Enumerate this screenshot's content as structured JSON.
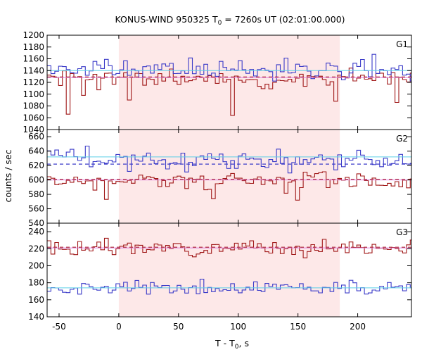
{
  "chart_data": {
    "type": "line",
    "title_main": "KONUS-WIND 950325 T",
    "title_sub": "0",
    "title_rest": " = 7260s UT (02:01:00.000)",
    "ylabel": "counts / sec",
    "xlabel_main": "T - T",
    "xlabel_sub": "0",
    "xlabel_rest": ", s",
    "xlim": [
      -60,
      245
    ],
    "x_ticks": [
      -50,
      0,
      50,
      100,
      150,
      200
    ],
    "highlight_interval": [
      0,
      185
    ],
    "highlight_color": "#fde8e8",
    "series_colors": {
      "high": "#3a3ac8",
      "low": "#a01818",
      "bg_high": "#5ccfe6",
      "bg_low": "#e080e0"
    },
    "panels": [
      {
        "name": "G1",
        "ylim": [
          1040,
          1200
        ],
        "y_ticks": [
          1040,
          1060,
          1080,
          1100,
          1120,
          1140,
          1160,
          1180,
          1200
        ],
        "blue_level": 1140,
        "red_level": 1128,
        "blue_base": 1142,
        "blue_amp": 16,
        "blue_seed": 11,
        "red_base": 1126,
        "red_amp": 14,
        "red_seed": 23,
        "red_dips": [
          [
            -42,
            1066
          ],
          [
            95,
            1064
          ],
          [
            -28,
            1098
          ],
          [
            10,
            1090
          ],
          [
            180,
            1088
          ],
          [
            232,
            1086
          ]
        ]
      },
      {
        "name": "G2",
        "ylim": [
          540,
          670
        ],
        "y_ticks": [
          540,
          560,
          580,
          600,
          620,
          640,
          660
        ],
        "blue_level": 632,
        "blue_level2": 622,
        "red_level": 600,
        "blue_base": 628,
        "blue_amp": 14,
        "blue_seed": 37,
        "red_base": 598,
        "red_amp": 12,
        "red_seed": 41,
        "red_dips": [
          [
            -10,
            573
          ],
          [
            80,
            574
          ],
          [
            150,
            572
          ]
        ]
      },
      {
        "name": "G3",
        "ylim": [
          140,
          250
        ],
        "y_ticks": [
          140,
          160,
          180,
          200,
          220,
          240
        ],
        "blue_level": 174,
        "red_level": 221,
        "blue_base": 174,
        "blue_amp": 8,
        "blue_seed": 53,
        "red_base": 221,
        "red_amp": 8,
        "red_seed": 67,
        "red_dips": []
      }
    ]
  }
}
